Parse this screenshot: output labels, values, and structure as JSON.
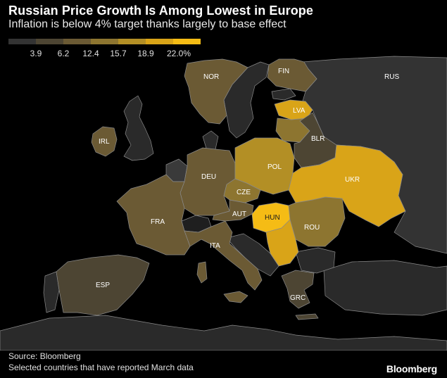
{
  "header": {
    "title": "Russian Price Growth Is Among Lowest in Europe",
    "subtitle": "Inflation is below 4% target thanks largely to base effect"
  },
  "legend": {
    "labels": [
      "3.9",
      "6.2",
      "12.4",
      "15.7",
      "18.9",
      "22.0%"
    ],
    "colors": [
      "#333333",
      "#4d4533",
      "#6b5a34",
      "#8d7530",
      "#b38f25",
      "#d9a418",
      "#f5bc15"
    ]
  },
  "colors": {
    "background": "#000000",
    "land_no_data": "#2a2a2a",
    "border": "#8a8a8a"
  },
  "countries": [
    {
      "code": "RUS",
      "bucket": 0
    },
    {
      "code": "NOR",
      "bucket": 2
    },
    {
      "code": "FIN",
      "bucket": 2
    },
    {
      "code": "LVA",
      "bucket": 5
    },
    {
      "code": "BLR",
      "bucket": 1
    },
    {
      "code": "IRL",
      "bucket": 2
    },
    {
      "code": "DEU",
      "bucket": 2
    },
    {
      "code": "POL",
      "bucket": 4
    },
    {
      "code": "UKR",
      "bucket": 5
    },
    {
      "code": "CZE",
      "bucket": 3
    },
    {
      "code": "AUT",
      "bucket": 2
    },
    {
      "code": "HUN",
      "bucket": 6
    },
    {
      "code": "FRA",
      "bucket": 2
    },
    {
      "code": "ROU",
      "bucket": 3
    },
    {
      "code": "ITA",
      "bucket": 2
    },
    {
      "code": "ESP",
      "bucket": 1
    },
    {
      "code": "GRC",
      "bucket": 1
    }
  ],
  "footer": {
    "source": "Source: Bloomberg",
    "note": "Selected countries that have reported March data",
    "brand": "Bloomberg"
  }
}
